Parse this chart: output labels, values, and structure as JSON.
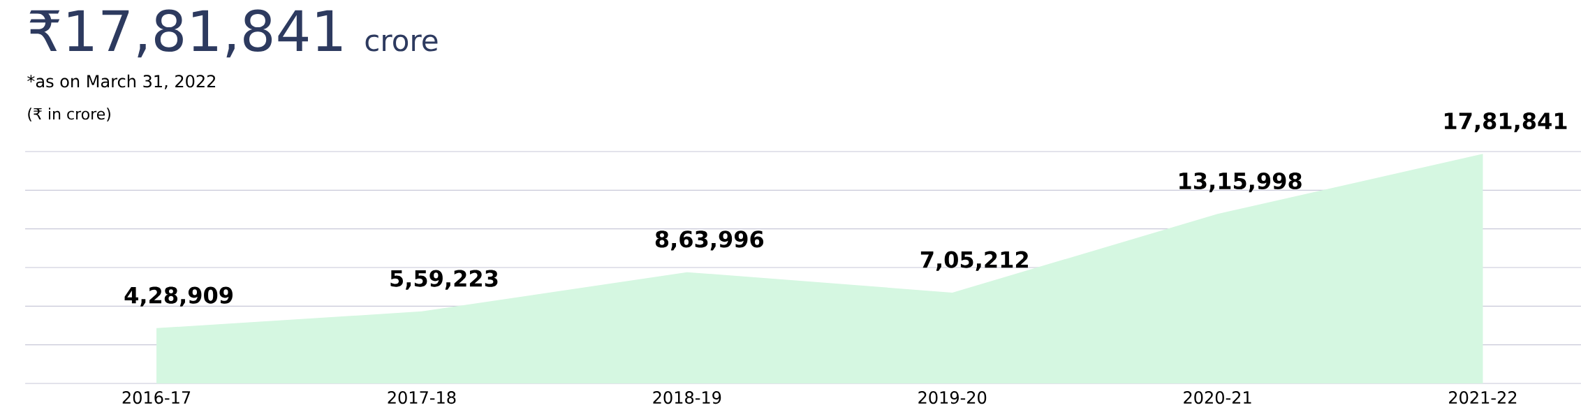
{
  "chart_data": {
    "type": "area",
    "title": "₹17,81,841",
    "subtitle": "*as on March 31, 2022",
    "ylabel": "(₹ in crore)",
    "annotations": [
      "crore"
    ],
    "categories": [
      "2016-17",
      "2017-18",
      "2018-19",
      "2019-20",
      "2020-21",
      "2021-22"
    ],
    "values": [
      428909,
      559223,
      863996,
      705212,
      1315998,
      1781841
    ],
    "value_labels": [
      "4,28,909",
      "5,59,223",
      "8,63,996",
      "7,05,212",
      "13,15,998",
      "17,81,841"
    ],
    "color": "#d5f7e1",
    "ylim": [
      0,
      1800000
    ],
    "yticks": [
      {
        "value": 0,
        "label": null
      },
      {
        "value": 300000,
        "label": null
      },
      {
        "value": 600000,
        "label": null
      },
      {
        "value": 900000,
        "label": null
      },
      {
        "value": 1200000,
        "label": null
      },
      {
        "value": 1500000,
        "label": null
      },
      {
        "value": 1800000,
        "label": null
      }
    ],
    "grid": "y",
    "tick_labels": "x"
  }
}
